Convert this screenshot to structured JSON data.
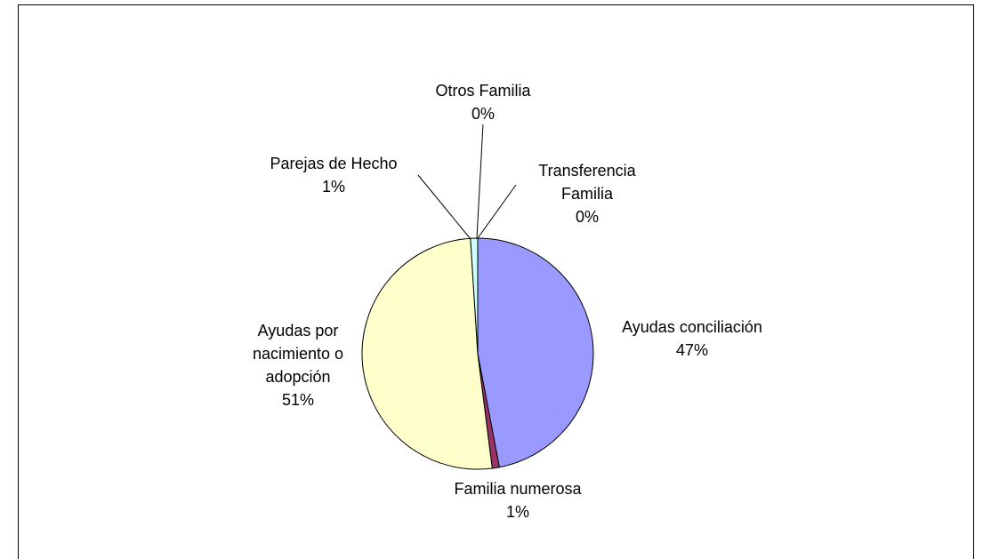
{
  "chart_data": {
    "type": "pie",
    "categories": [
      "Ayudas conciliación",
      "Familia numerosa",
      "Ayudas por nacimiento o adopción",
      "Parejas de Hecho",
      "Otros Familia",
      "Transferencia Familia"
    ],
    "values": [
      47,
      1,
      51,
      1,
      0,
      0
    ],
    "value_labels": [
      "47%",
      "1%",
      "51%",
      "1%",
      "0%",
      "0%"
    ],
    "colors": [
      "#9999ff",
      "#993366",
      "#ffffcc",
      "#ccffff",
      "#660066",
      "#333399"
    ]
  }
}
